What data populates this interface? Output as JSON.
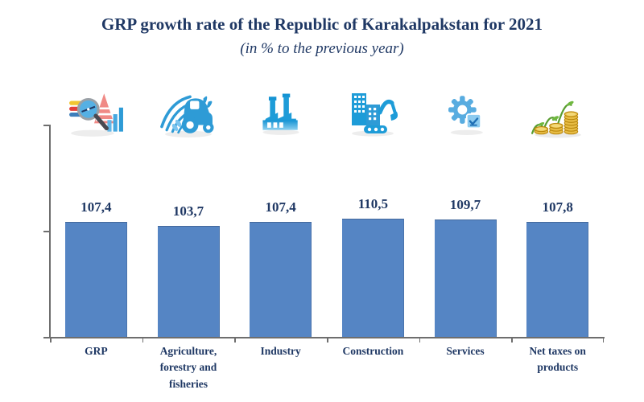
{
  "header": {
    "title": "GRP growth rate of the Republic of Karakalpakstan for 2021",
    "subtitle": "(in % to the previous year)"
  },
  "chart_data": {
    "type": "bar",
    "title": "GRP growth rate of the Republic of Karakalpakstan for 2021",
    "subtitle": "(in % to the previous year)",
    "categories": [
      "GRP",
      "Agriculture,\nforestry and\nfisheries",
      "Industry",
      "Construction",
      "Services",
      "Net taxes on\nproducts"
    ],
    "values": [
      107.4,
      103.7,
      107.4,
      110.5,
      109.7,
      107.8
    ],
    "value_labels": [
      "107,4",
      "103,7",
      "107,4",
      "110,5",
      "109,7",
      "107,8"
    ],
    "xlabel": "",
    "ylabel": "",
    "ylim": [
      0,
      200
    ],
    "yticks": [
      0,
      100,
      200
    ],
    "ytick_labels_shown": false,
    "grid": false,
    "legend": false,
    "bar_color": "#5585C4",
    "axis_color": "#6e6e6e",
    "text_color": "#1F3864",
    "icons": [
      {
        "name": "analytics-magnifier-icon",
        "category": "GRP"
      },
      {
        "name": "agriculture-tractor-icon",
        "category": "Agriculture, forestry and fisheries"
      },
      {
        "name": "industry-factory-icon",
        "category": "Industry"
      },
      {
        "name": "construction-excavator-icon",
        "category": "Construction"
      },
      {
        "name": "services-gear-icon",
        "category": "Services"
      },
      {
        "name": "taxes-coins-icon",
        "category": "Net taxes on products"
      }
    ]
  }
}
